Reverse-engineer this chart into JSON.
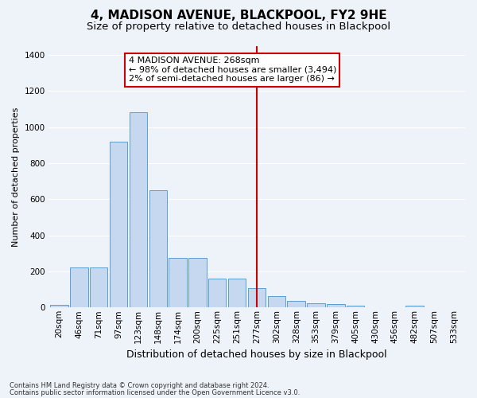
{
  "title": "4, MADISON AVENUE, BLACKPOOL, FY2 9HE",
  "subtitle": "Size of property relative to detached houses in Blackpool",
  "xlabel": "Distribution of detached houses by size in Blackpool",
  "ylabel": "Number of detached properties",
  "footer1": "Contains HM Land Registry data © Crown copyright and database right 2024.",
  "footer2": "Contains public sector information licensed under the Open Government Licence v3.0.",
  "bin_labels": [
    "20sqm",
    "46sqm",
    "71sqm",
    "97sqm",
    "123sqm",
    "148sqm",
    "174sqm",
    "200sqm",
    "225sqm",
    "251sqm",
    "277sqm",
    "302sqm",
    "328sqm",
    "353sqm",
    "379sqm",
    "405sqm",
    "430sqm",
    "456sqm",
    "482sqm",
    "507sqm",
    "533sqm"
  ],
  "bar_heights": [
    15,
    220,
    220,
    920,
    1080,
    650,
    275,
    275,
    160,
    160,
    105,
    65,
    35,
    22,
    18,
    12,
    0,
    0,
    8,
    0,
    0
  ],
  "bar_color": "#c5d8f0",
  "bar_edge_color": "#5a9fd4",
  "vline_color": "#cc0000",
  "annotation_title": "4 MADISON AVENUE: 268sqm",
  "annotation_line1": "← 98% of detached houses are smaller (3,494)",
  "annotation_line2": "2% of semi-detached houses are larger (86) →",
  "annotation_box_edgecolor": "#cc0000",
  "ylim": [
    0,
    1450
  ],
  "yticks": [
    0,
    200,
    400,
    600,
    800,
    1000,
    1200,
    1400
  ],
  "background_color": "#eef2f9",
  "grid_color": "#ffffff",
  "title_fontsize": 11,
  "subtitle_fontsize": 9.5,
  "xlabel_fontsize": 9,
  "ylabel_fontsize": 8,
  "tick_fontsize": 7.5,
  "ann_fontsize": 8
}
